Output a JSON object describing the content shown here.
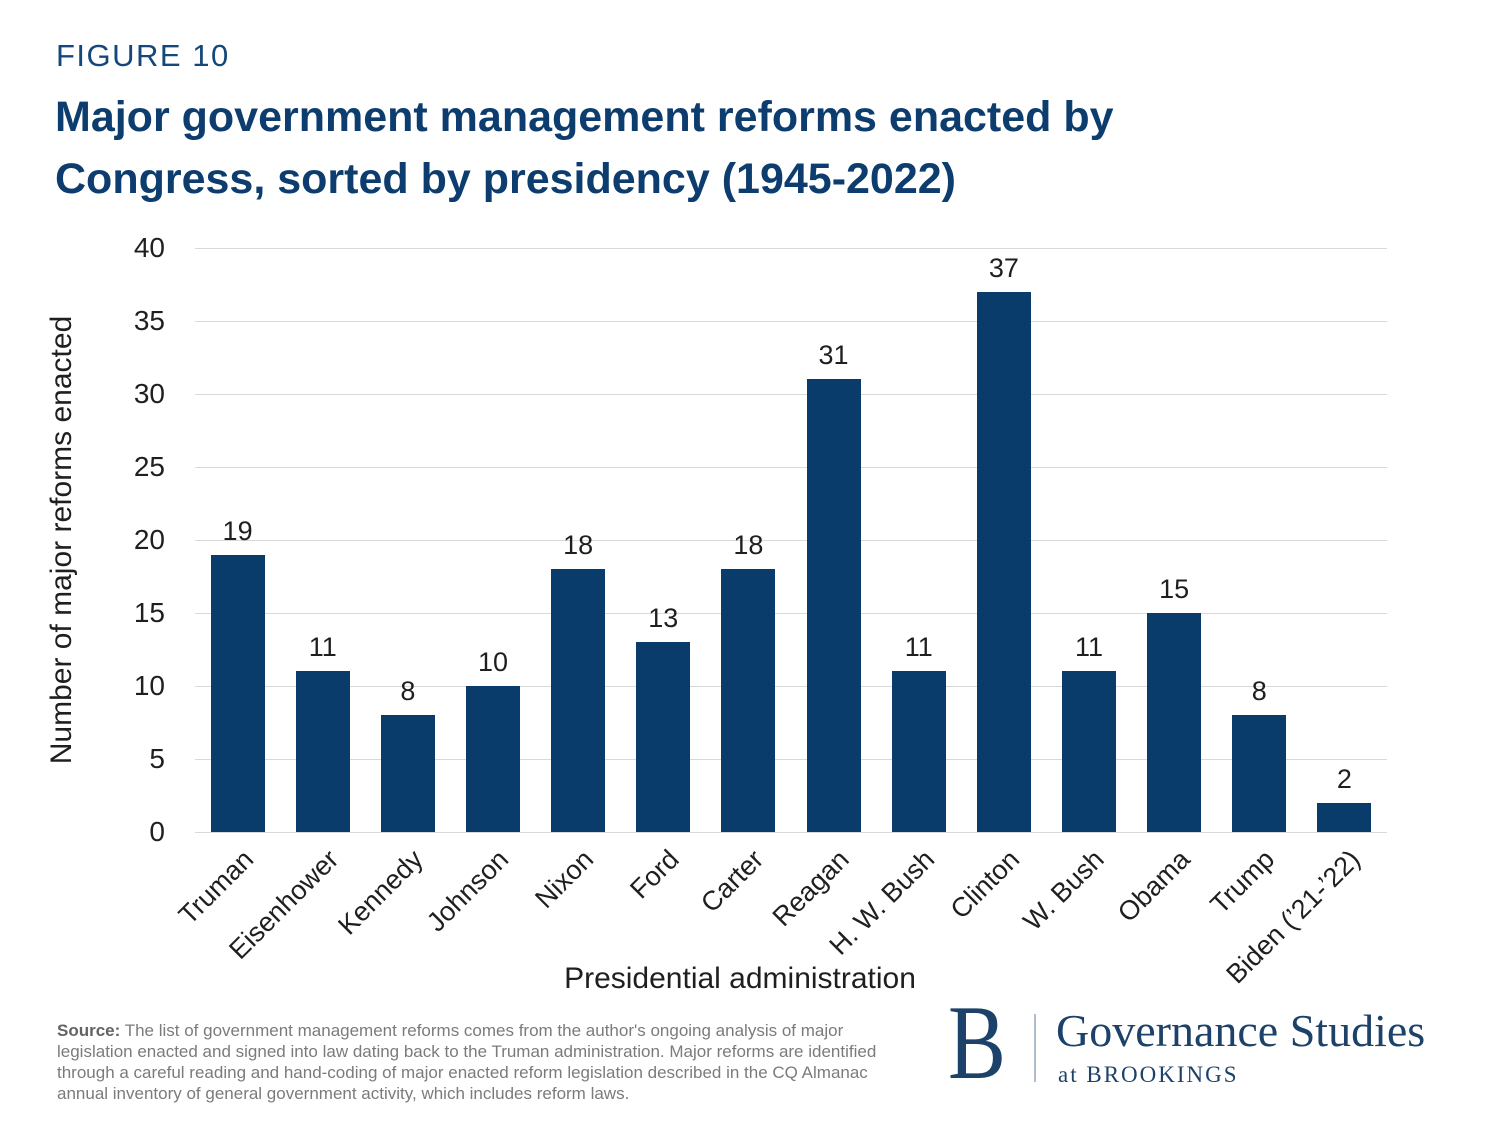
{
  "figure_label": "FIGURE 10",
  "title": {
    "line1": "Major government management reforms enacted by",
    "line2": "Congress, sorted by presidency (1945-2022)"
  },
  "chart_data": {
    "type": "bar",
    "categories": [
      "Truman",
      "Eisenhower",
      "Kennedy",
      "Johnson",
      "Nixon",
      "Ford",
      "Carter",
      "Reagan",
      "H. W. Bush",
      "Clinton",
      "W. Bush",
      "Obama",
      "Trump",
      "Biden (’21-’22)"
    ],
    "values": [
      19,
      11,
      8,
      10,
      18,
      13,
      18,
      31,
      11,
      37,
      11,
      15,
      8,
      2
    ],
    "title": "Major government management reforms enacted by Congress, sorted by presidency (1945-2022)",
    "xlabel": "Presidential administration",
    "ylabel": "Number of major reforms enacted",
    "ylim": [
      0,
      40
    ],
    "ytick_step": 5,
    "grid": "horizontal",
    "legend": "none",
    "value_labels": "above bars"
  },
  "source": {
    "label": "Source:",
    "text": " The list of government management reforms comes from the author's ongoing analysis of major legislation enacted and signed into law dating back to the Truman administration. Major reforms are identified through a careful reading and hand-coding of major enacted reform legislation described in the CQ Almanac annual inventory of general government activity, which includes reform laws."
  },
  "logo": {
    "monogram": "B",
    "name": "Governance Studies",
    "tagline": "at BROOKINGS"
  },
  "colors": {
    "title_navy": "#0d3d6e",
    "figure_label_navy": "#14477b",
    "bar_navy": "#0a3c6b",
    "gridline_gray": "#d9d9d9",
    "axis_text": "#1f1f1f",
    "source_gray": "#7b7b7b",
    "logo_navy": "#1d4269",
    "logo_divider": "#aebccd"
  }
}
